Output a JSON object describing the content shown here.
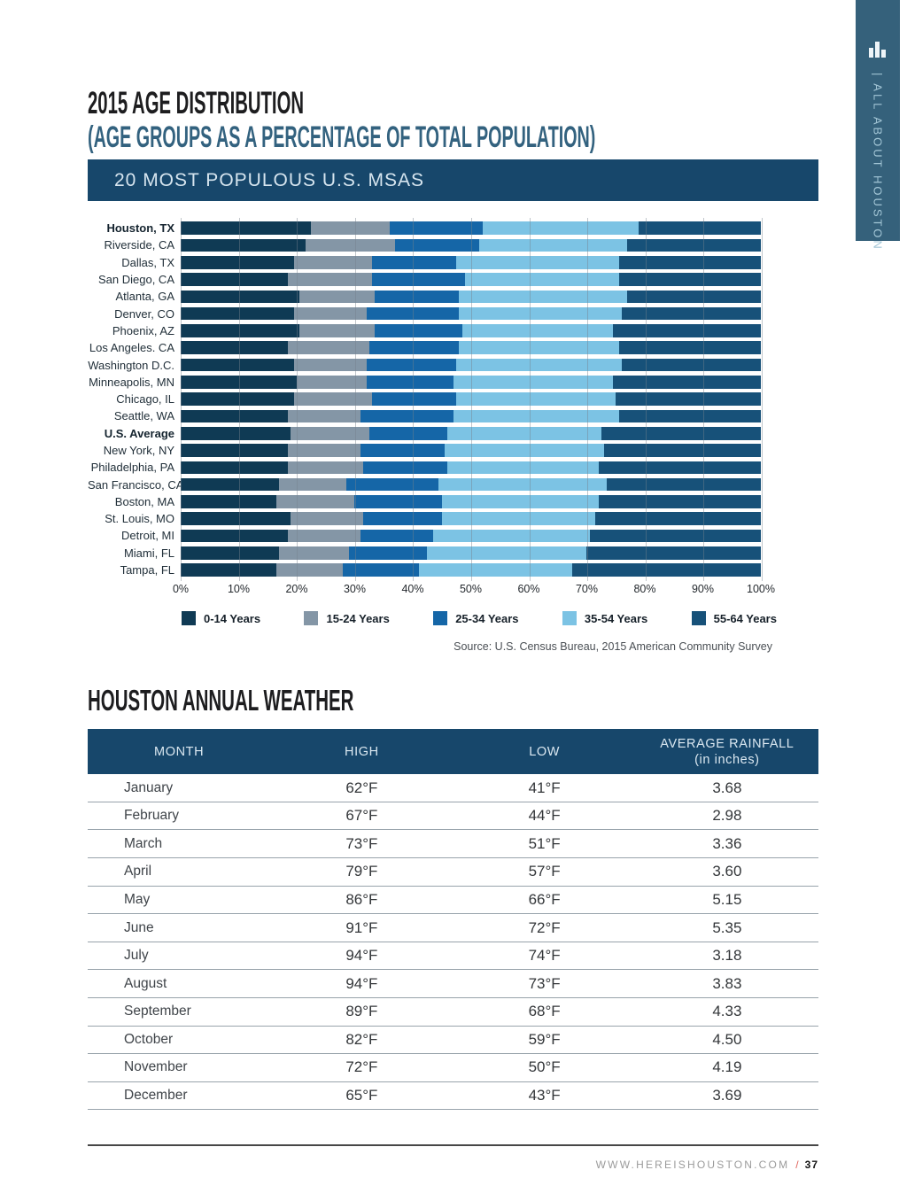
{
  "page": {
    "title_line1": "2015 AGE DISTRIBUTION",
    "title_line2": "(AGE GROUPS AS A PERCENTAGE OF TOTAL POPULATION)",
    "banner": "20 MOST POPULOUS U.S. MSAS",
    "sidebar_label": "|  ALL ABOUT HOUSTON",
    "sidebar_icon": "bar-chart-icon",
    "footer_url": "WWW.HEREISHOUSTON.COM",
    "footer_separator": "/",
    "footer_page": "37"
  },
  "chart_data": {
    "type": "bar",
    "orientation": "horizontal-stacked",
    "title": "20 MOST POPULOUS U.S. MSAS",
    "xlim": [
      0,
      100
    ],
    "x_ticks": [
      "0%",
      "10%",
      "20%",
      "30%",
      "40%",
      "50%",
      "60%",
      "70%",
      "80%",
      "90%",
      "100%"
    ],
    "grid": true,
    "legend_position": "bottom",
    "legend": [
      "0-14 Years",
      "15-24 Years",
      "25-34 Years",
      "35-54 Years",
      "55-64 Years"
    ],
    "colors": [
      "#0f3a54",
      "#8496a6",
      "#1566a7",
      "#7cc3e4",
      "#175179"
    ],
    "source": "Source: U.S. Census Bureau, 2015 American Community Survey",
    "categories": [
      "Houston, TX",
      "Riverside, CA",
      "Dallas, TX",
      "San Diego, CA",
      "Atlanta, GA",
      "Denver, CO",
      "Phoenix, AZ",
      "Los Angeles. CA",
      "Washington D.C.",
      "Minneapolis, MN",
      "Chicago, IL",
      "Seattle, WA",
      "U.S. Average",
      "New York, NY",
      "Philadelphia, PA",
      "San Francisco, CA",
      "Boston, MA",
      "St. Louis, MO",
      "Detroit, MI",
      "Miami, FL",
      "Tampa, FL"
    ],
    "bold_categories": [
      "Houston, TX",
      "U.S. Average"
    ],
    "series": [
      {
        "name": "0-14 Years",
        "values": [
          22.5,
          21.5,
          19.5,
          18.5,
          20.5,
          19.5,
          20.5,
          18.5,
          19.5,
          20,
          19.5,
          18.5,
          19,
          18.5,
          18.5,
          17,
          16.5,
          19,
          18.5,
          17,
          16.5
        ]
      },
      {
        "name": "15-24 Years",
        "values": [
          13.5,
          15.5,
          13.5,
          14.5,
          13,
          12.5,
          13,
          14,
          12.5,
          12,
          13.5,
          12.5,
          13.5,
          12.5,
          13,
          11.5,
          13.5,
          12.5,
          12.5,
          12,
          11.5
        ]
      },
      {
        "name": "25-34 Years",
        "values": [
          16,
          14.5,
          14.5,
          16,
          14.5,
          16,
          15,
          15.5,
          15.5,
          15,
          14.5,
          16,
          13.5,
          14.5,
          14.5,
          16,
          15,
          13.5,
          12.5,
          13.5,
          13
        ]
      },
      {
        "name": "35-54 Years",
        "values": [
          27,
          25.5,
          28,
          26.5,
          29,
          28,
          26,
          27.5,
          28.5,
          27.5,
          27.5,
          28.5,
          26.5,
          27.5,
          26,
          29,
          27,
          26.5,
          27,
          27.5,
          26.5
        ]
      },
      {
        "name": "55-64 Years",
        "values": [
          21,
          23,
          24.5,
          24.5,
          23,
          24,
          25.5,
          24.5,
          24,
          25.5,
          25,
          24.5,
          27.5,
          27,
          28,
          26.5,
          28,
          28.5,
          29.5,
          30,
          32.5
        ]
      }
    ]
  },
  "weather": {
    "heading": "HOUSTON ANNUAL WEATHER",
    "columns": [
      {
        "label": "MONTH"
      },
      {
        "label": "HIGH"
      },
      {
        "label": "LOW"
      },
      {
        "label": "AVERAGE RAINFALL",
        "sub": "(in inches)"
      }
    ],
    "rows": [
      [
        "January",
        "62°F",
        "41°F",
        "3.68"
      ],
      [
        "February",
        "67°F",
        "44°F",
        "2.98"
      ],
      [
        "March",
        "73°F",
        "51°F",
        "3.36"
      ],
      [
        "April",
        "79°F",
        "57°F",
        "3.60"
      ],
      [
        "May",
        "86°F",
        "66°F",
        "5.15"
      ],
      [
        "June",
        "91°F",
        "72°F",
        "5.35"
      ],
      [
        "July",
        "94°F",
        "74°F",
        "3.18"
      ],
      [
        "August",
        "94°F",
        "73°F",
        "3.83"
      ],
      [
        "September",
        "89°F",
        "68°F",
        "4.33"
      ],
      [
        "October",
        "82°F",
        "59°F",
        "4.50"
      ],
      [
        "November",
        "72°F",
        "50°F",
        "4.19"
      ],
      [
        "December",
        "65°F",
        "43°F",
        "3.69"
      ]
    ]
  }
}
